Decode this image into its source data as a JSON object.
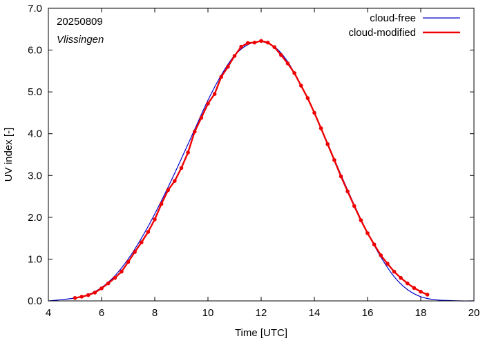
{
  "chart_data": {
    "type": "line",
    "annotations": {
      "date": "20250809",
      "location": "Vlissingen"
    },
    "xlabel": "Time  [UTC]",
    "ylabel": "UV index  [-]",
    "xlim": [
      4,
      20
    ],
    "ylim": [
      0,
      7
    ],
    "x_ticks": [
      4,
      6,
      8,
      10,
      12,
      14,
      16,
      18,
      20
    ],
    "y_ticks": [
      "0.0",
      "1.0",
      "2.0",
      "3.0",
      "4.0",
      "5.0",
      "6.0",
      "7.0"
    ],
    "grid": false,
    "legend_position": "top-right",
    "series": [
      {
        "name": "cloud-free",
        "color": "#0000cc",
        "style": "thin line",
        "x": [
          4.0,
          4.5,
          5.0,
          5.5,
          6.0,
          6.5,
          7.0,
          7.5,
          8.0,
          8.5,
          9.0,
          9.5,
          10.0,
          10.5,
          11.0,
          11.5,
          12.0,
          12.5,
          13.0,
          13.5,
          14.0,
          14.5,
          15.0,
          15.5,
          16.0,
          16.5,
          17.0,
          17.5,
          18.0,
          18.5,
          19.0,
          19.5,
          20.0
        ],
        "values": [
          0.0,
          0.03,
          0.07,
          0.15,
          0.32,
          0.6,
          1.0,
          1.5,
          2.08,
          2.72,
          3.4,
          4.1,
          4.8,
          5.4,
          5.87,
          6.13,
          6.2,
          6.08,
          5.72,
          5.15,
          4.5,
          3.77,
          3.02,
          2.3,
          1.63,
          1.05,
          0.58,
          0.27,
          0.1,
          0.03,
          0.01,
          0.0,
          0.0
        ]
      },
      {
        "name": "cloud-modified",
        "color": "#ee0000",
        "style": "thick line with point markers",
        "x": [
          5.0,
          5.25,
          5.5,
          5.75,
          6.0,
          6.25,
          6.5,
          6.75,
          7.0,
          7.25,
          7.5,
          7.75,
          8.0,
          8.25,
          8.5,
          8.75,
          9.0,
          9.25,
          9.5,
          9.75,
          10.0,
          10.25,
          10.5,
          10.75,
          11.0,
          11.25,
          11.5,
          11.75,
          12.0,
          12.25,
          12.5,
          12.75,
          13.0,
          13.25,
          13.5,
          13.75,
          14.0,
          14.25,
          14.5,
          14.75,
          15.0,
          15.25,
          15.5,
          15.75,
          16.0,
          16.25,
          16.5,
          16.75,
          17.0,
          17.25,
          17.5,
          17.75,
          18.0,
          18.25
        ],
        "values": [
          0.07,
          0.1,
          0.14,
          0.2,
          0.3,
          0.42,
          0.55,
          0.7,
          0.93,
          1.17,
          1.4,
          1.65,
          1.95,
          2.32,
          2.65,
          2.87,
          3.18,
          3.55,
          4.05,
          4.38,
          4.72,
          4.95,
          5.36,
          5.6,
          5.86,
          6.08,
          6.17,
          6.18,
          6.22,
          6.18,
          6.07,
          5.88,
          5.68,
          5.45,
          5.15,
          4.85,
          4.5,
          4.13,
          3.75,
          3.37,
          2.98,
          2.62,
          2.27,
          1.93,
          1.62,
          1.35,
          1.09,
          0.89,
          0.7,
          0.55,
          0.42,
          0.31,
          0.22,
          0.15
        ]
      }
    ]
  }
}
